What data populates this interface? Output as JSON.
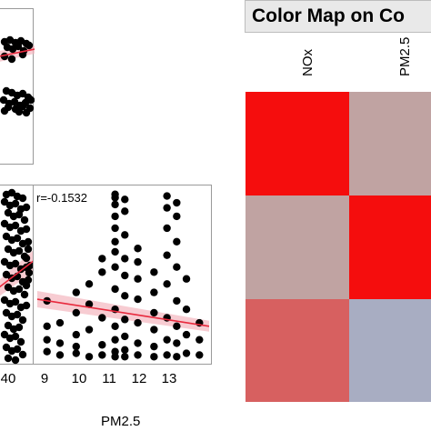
{
  "chart_data": [
    {
      "type": "scatter",
      "panel": "pm25-vs-pm25-partial-top",
      "x": [],
      "y": [],
      "trendline": true
    },
    {
      "type": "scatter",
      "panel": "nox-vs-pm25-partial",
      "x_tick_labels": [
        "40"
      ],
      "trendline": true
    },
    {
      "type": "scatter",
      "panel": "pm25-vs-other",
      "annotation": "r=-0.1532",
      "xlabel": "PM2.5",
      "x_tick_labels": [
        "9",
        "10",
        "11",
        "12",
        "13"
      ],
      "xlim": [
        8.7,
        14.0
      ],
      "ylim": [
        0,
        100
      ],
      "columns": [
        {
          "x": 9.0,
          "ys": [
            5,
            12,
            20,
            35
          ]
        },
        {
          "x": 9.4,
          "ys": [
            3,
            10,
            22
          ]
        },
        {
          "x": 9.9,
          "ys": [
            4,
            15,
            28,
            40,
            8
          ]
        },
        {
          "x": 10.3,
          "ys": [
            2,
            18,
            33,
            45
          ]
        },
        {
          "x": 10.7,
          "ys": [
            3,
            9,
            25,
            52,
            60
          ]
        },
        {
          "x": 11.1,
          "ys": [
            2,
            5,
            12,
            20,
            30,
            42,
            55,
            64,
            70,
            78,
            85,
            92,
            96,
            98
          ]
        },
        {
          "x": 11.4,
          "ys": [
            2,
            6,
            14,
            24,
            38,
            50,
            60,
            74,
            88,
            95
          ]
        },
        {
          "x": 11.8,
          "ys": [
            3,
            10,
            22,
            36,
            48,
            58,
            66
          ]
        },
        {
          "x": 12.3,
          "ys": [
            2,
            8,
            18,
            28,
            40,
            52
          ]
        },
        {
          "x": 12.7,
          "ys": [
            3,
            12,
            25,
            45,
            62,
            78,
            90,
            97
          ]
        },
        {
          "x": 13.0,
          "ys": [
            2,
            10,
            20,
            35,
            55,
            70,
            85,
            93
          ]
        },
        {
          "x": 13.3,
          "ys": [
            4,
            15,
            30,
            48
          ]
        },
        {
          "x": 13.7,
          "ys": [
            3,
            12,
            22
          ]
        }
      ],
      "fit": {
        "x": [
          8.7,
          14.0
        ],
        "y": [
          36,
          20
        ]
      }
    },
    {
      "type": "heatmap",
      "title": "Color Map on Co",
      "columns": [
        "NOx",
        "PM2.5"
      ],
      "rows": 3,
      "cells": [
        [
          "#f50d0d",
          "#c0a3a2"
        ],
        [
          "#c0a3a2",
          "#f50d0d"
        ],
        [
          "#d76060",
          "#a8adc2"
        ]
      ]
    }
  ]
}
